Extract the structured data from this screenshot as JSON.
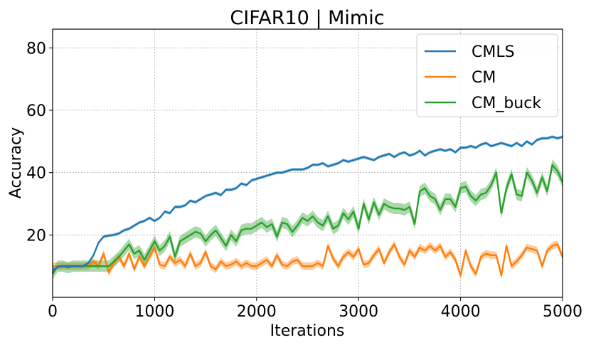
{
  "chart_data": {
    "type": "line",
    "title": "CIFAR10 | Mimic",
    "xlabel": "Iterations",
    "ylabel": "Accuracy",
    "xlim": [
      0,
      5000
    ],
    "ylim": [
      0,
      86
    ],
    "xticks": [
      0,
      1000,
      2000,
      3000,
      4000,
      5000
    ],
    "yticks": [
      20,
      40,
      60,
      80
    ],
    "grid": true,
    "legend_position": "top-right",
    "x": [
      0,
      50,
      100,
      150,
      200,
      250,
      300,
      350,
      400,
      450,
      500,
      550,
      600,
      650,
      700,
      750,
      800,
      850,
      900,
      950,
      1000,
      1050,
      1100,
      1150,
      1200,
      1250,
      1300,
      1350,
      1400,
      1450,
      1500,
      1550,
      1600,
      1650,
      1700,
      1750,
      1800,
      1850,
      1900,
      1950,
      2000,
      2050,
      2100,
      2150,
      2200,
      2250,
      2300,
      2350,
      2400,
      2450,
      2500,
      2550,
      2600,
      2650,
      2700,
      2750,
      2800,
      2850,
      2900,
      2950,
      3000,
      3050,
      3100,
      3150,
      3200,
      3250,
      3300,
      3350,
      3400,
      3450,
      3500,
      3550,
      3600,
      3650,
      3700,
      3750,
      3800,
      3850,
      3900,
      3950,
      4000,
      4050,
      4100,
      4150,
      4200,
      4250,
      4300,
      4350,
      4400,
      4450,
      4500,
      4550,
      4600,
      4650,
      4700,
      4750,
      4800,
      4850,
      4900,
      4950,
      5000
    ],
    "series": [
      {
        "name": "CMLS",
        "color": "#1f77b4",
        "band": 0.5,
        "values": [
          8.5,
          9.8,
          10.0,
          10.0,
          10.0,
          10.0,
          10.0,
          11.0,
          13.5,
          17.5,
          19.5,
          19.8,
          20.0,
          20.5,
          21.5,
          22.0,
          23.0,
          24.0,
          24.5,
          25.5,
          24.5,
          25.5,
          27.5,
          27.0,
          29.0,
          29.0,
          29.5,
          31.0,
          30.5,
          31.5,
          32.5,
          33.0,
          33.5,
          32.8,
          34.5,
          34.5,
          35.0,
          36.5,
          36.0,
          37.5,
          38.0,
          38.5,
          39.0,
          39.5,
          40.0,
          40.0,
          40.5,
          41.0,
          41.0,
          41.0,
          41.5,
          42.5,
          42.5,
          43.0,
          42.0,
          42.5,
          43.0,
          44.0,
          43.5,
          44.0,
          44.5,
          45.0,
          44.5,
          44.0,
          45.0,
          45.5,
          46.0,
          45.0,
          46.0,
          46.5,
          45.5,
          46.0,
          47.0,
          45.5,
          46.5,
          47.0,
          47.5,
          47.0,
          47.5,
          46.5,
          48.0,
          48.0,
          48.5,
          48.0,
          49.0,
          49.5,
          48.5,
          49.0,
          49.5,
          49.0,
          48.5,
          49.5,
          48.5,
          50.0,
          49.0,
          50.5,
          51.0,
          51.0,
          51.5,
          51.0,
          51.5
        ]
      },
      {
        "name": "CM",
        "color": "#ff7f0e",
        "band": 1.2,
        "values": [
          10.0,
          10.0,
          10.0,
          10.0,
          10.0,
          10.0,
          10.0,
          10.0,
          11.5,
          10.0,
          14.0,
          8.0,
          11.0,
          13.0,
          10.0,
          14.0,
          9.0,
          13.0,
          10.0,
          13.0,
          16.0,
          10.5,
          10.0,
          13.0,
          11.0,
          12.0,
          10.0,
          14.0,
          10.0,
          11.0,
          14.5,
          10.0,
          9.0,
          11.5,
          10.0,
          10.5,
          11.5,
          10.0,
          11.0,
          10.0,
          10.0,
          11.0,
          12.0,
          10.0,
          13.5,
          10.5,
          10.0,
          11.5,
          12.0,
          10.0,
          10.0,
          10.0,
          11.0,
          10.0,
          16.5,
          12.5,
          10.0,
          13.0,
          14.5,
          13.0,
          15.5,
          10.5,
          11.0,
          13.5,
          15.5,
          11.0,
          14.5,
          17.0,
          13.0,
          10.5,
          15.0,
          13.0,
          16.0,
          15.0,
          16.5,
          15.0,
          16.5,
          13.0,
          14.5,
          12.0,
          7.0,
          15.0,
          10.0,
          7.5,
          13.0,
          14.0,
          13.5,
          13.5,
          7.0,
          16.5,
          10.0,
          11.5,
          13.5,
          16.0,
          15.5,
          15.0,
          10.0,
          15.0,
          16.5,
          17.0,
          13.0
        ]
      },
      {
        "name": "CM_buck",
        "color": "#2ca02c",
        "band": 1.8,
        "values": [
          7.5,
          10.0,
          10.0,
          9.5,
          10.0,
          10.0,
          10.0,
          10.0,
          10.0,
          10.0,
          10.0,
          10.0,
          11.5,
          13.0,
          15.0,
          17.0,
          14.0,
          15.0,
          12.0,
          15.0,
          18.0,
          15.0,
          16.5,
          19.5,
          13.0,
          18.0,
          19.0,
          20.0,
          21.0,
          20.5,
          18.0,
          20.0,
          21.5,
          19.0,
          16.5,
          20.0,
          18.0,
          21.5,
          22.0,
          22.0,
          23.0,
          24.0,
          22.5,
          23.5,
          19.5,
          24.0,
          23.5,
          21.0,
          23.0,
          25.5,
          24.5,
          26.0,
          24.0,
          23.0,
          26.0,
          22.0,
          23.0,
          27.0,
          25.0,
          27.5,
          22.0,
          30.0,
          25.0,
          30.5,
          26.5,
          30.0,
          29.0,
          28.5,
          28.5,
          28.0,
          29.0,
          23.5,
          34.0,
          35.0,
          32.5,
          31.5,
          28.0,
          31.5,
          31.5,
          29.0,
          35.0,
          35.5,
          32.5,
          31.0,
          33.0,
          33.5,
          36.0,
          40.0,
          27.0,
          35.0,
          39.5,
          33.0,
          32.5,
          40.0,
          37.5,
          33.5,
          38.5,
          34.0,
          42.5,
          40.5,
          37.0
        ]
      }
    ]
  }
}
